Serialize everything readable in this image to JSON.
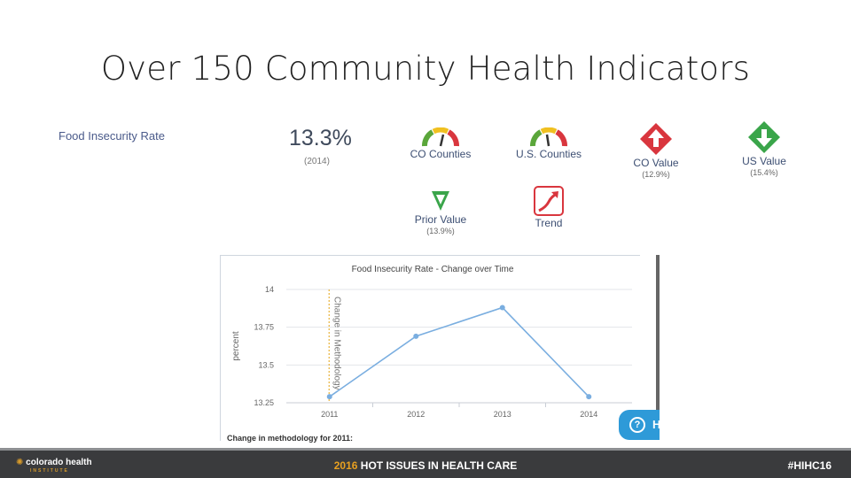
{
  "slide": {
    "title": "Over 150 Community Health Indicators"
  },
  "indicator": {
    "name": "Food Insecurity Rate",
    "value": "13.3%",
    "year": "(2014)"
  },
  "badges": {
    "co_counties": {
      "label": "CO Counties",
      "icon": "gauge-icon"
    },
    "us_counties": {
      "label": "U.S. Counties",
      "icon": "gauge-icon"
    },
    "co_value": {
      "label": "CO Value",
      "sub": "(12.9%)",
      "icon": "red-diamond-up-icon",
      "color": "#d9363e"
    },
    "us_value": {
      "label": "US Value",
      "sub": "(15.4%)",
      "icon": "green-diamond-down-icon",
      "color": "#3aa54a"
    },
    "prior_value": {
      "label": "Prior Value",
      "sub": "(13.9%)",
      "icon": "green-triangle-down-icon",
      "color": "#3aa54a"
    },
    "trend": {
      "label": "Trend",
      "icon": "trend-up-icon",
      "color": "#d9363e"
    }
  },
  "chart_data": {
    "type": "line",
    "title": "Food Insecurity Rate - Change over Time",
    "ylabel": "percent",
    "xlabel": "",
    "categories": [
      "2011",
      "2012",
      "2013",
      "2014"
    ],
    "series": [
      {
        "values": [
          13.29,
          13.69,
          13.88,
          13.29
        ]
      }
    ],
    "ylim": [
      13.25,
      14
    ],
    "yticks": [
      "14",
      "13.75",
      "13.5",
      "13.25"
    ],
    "ytick_values": [
      14,
      13.75,
      13.5,
      13.25
    ],
    "annotation": "Change in Methodology",
    "grid": true,
    "color": "#7aaee0"
  },
  "chart_footnote": "Change in methodology for 2011:",
  "help_button": {
    "label": "H"
  },
  "footer": {
    "logo_text": "colorado health",
    "logo_sub": "INSTITUTE",
    "center_year": "2016",
    "center_text": "HOT ISSUES IN HEALTH CARE",
    "hashtag": "#HIHC16"
  }
}
